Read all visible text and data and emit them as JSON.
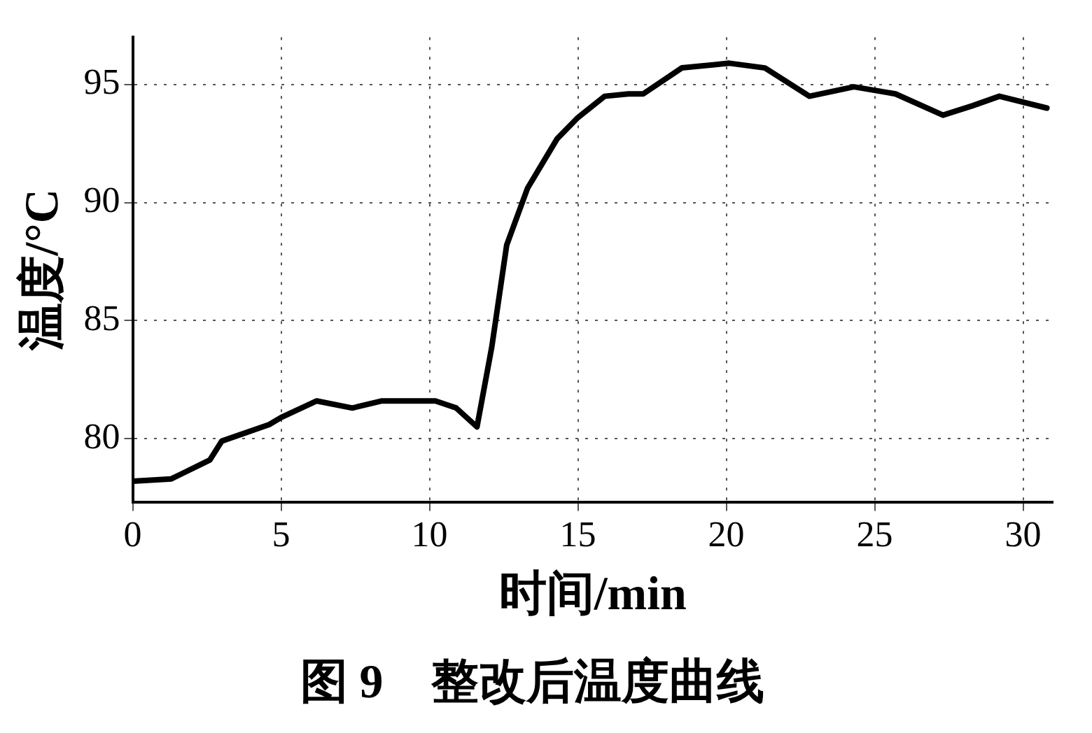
{
  "chart_data": {
    "type": "line",
    "title": "图 9　整改后温度曲线",
    "xlabel": "时间/min",
    "ylabel": "温度/°C",
    "x": [
      0,
      1.3,
      2.6,
      3.0,
      4.6,
      5.0,
      6.2,
      7.4,
      8.4,
      10.2,
      10.9,
      11.6,
      12.1,
      12.6,
      13.3,
      14.3,
      15.0,
      15.9,
      16.7,
      17.2,
      18.5,
      20.1,
      21.3,
      22.8,
      24.3,
      25.7,
      27.3,
      28.3,
      29.2,
      30.8
    ],
    "series": [
      {
        "color": "#000000",
        "values": [
          78.2,
          78.3,
          79.1,
          79.9,
          80.6,
          80.9,
          81.6,
          81.3,
          81.6,
          81.6,
          81.3,
          80.5,
          83.9,
          88.2,
          90.6,
          92.7,
          93.6,
          94.5,
          94.6,
          94.6,
          95.7,
          95.9,
          95.7,
          94.5,
          94.9,
          94.6,
          93.7,
          94.1,
          94.5,
          94.0
        ]
      }
    ],
    "xlim": [
      0,
      31
    ],
    "xticks": [
      0,
      5,
      10,
      15,
      20,
      25,
      30
    ],
    "ylim": [
      77.3,
      97
    ],
    "yticks": [
      80,
      85,
      90,
      95
    ],
    "grid": true,
    "legend": false,
    "marker": "none",
    "line_style": "solid"
  }
}
